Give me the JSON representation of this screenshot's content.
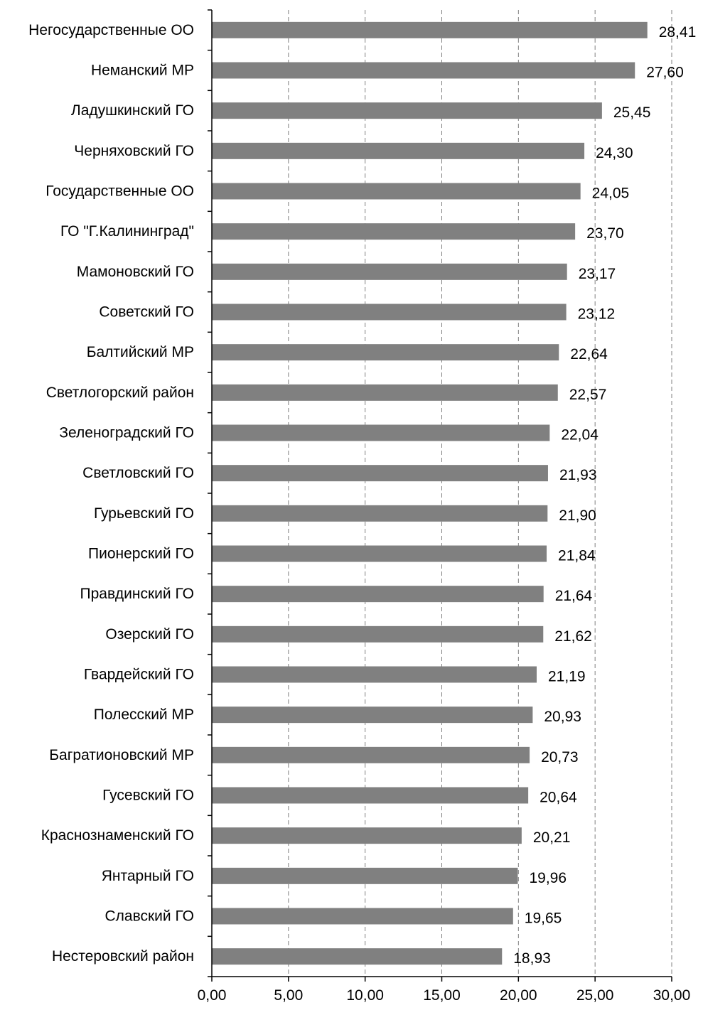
{
  "chart_data": {
    "type": "bar",
    "orientation": "horizontal",
    "title": "",
    "xlabel": "",
    "ylabel": "",
    "xlim": [
      0,
      30
    ],
    "x_ticks": [
      "0,00",
      "5,00",
      "10,00",
      "15,00",
      "20,00",
      "25,00",
      "30,00"
    ],
    "x_tick_values": [
      0,
      5,
      10,
      15,
      20,
      25,
      30
    ],
    "grid": "vertical-dashed",
    "legend": "none",
    "bar_color": "#808080",
    "categories": [
      "Негосударственные ОО",
      "Неманский МР",
      "Ладушкинский ГО",
      "Черняховский ГО",
      "Государственные ОО",
      "ГО \"Г.Калининград\"",
      "Мамоновский ГО",
      "Советский ГО",
      "Балтийский МР",
      "Светлогорский район",
      "Зеленоградский ГО",
      "Светловский ГО",
      "Гурьевский ГО",
      "Пионерский ГО",
      "Правдинский ГО",
      "Озерский ГО",
      "Гвардейский ГО",
      "Полесский МР",
      "Багратионовский МР",
      "Гусевский ГО",
      "Краснознаменский ГО",
      "Янтарный ГО",
      "Славский ГО",
      "Нестеровский район"
    ],
    "values": [
      28.41,
      27.6,
      25.45,
      24.3,
      24.05,
      23.7,
      23.17,
      23.12,
      22.64,
      22.57,
      22.04,
      21.93,
      21.9,
      21.84,
      21.64,
      21.62,
      21.19,
      20.93,
      20.73,
      20.64,
      20.21,
      19.96,
      19.65,
      18.93
    ],
    "value_labels": [
      "28,41",
      "27,60",
      "25,45",
      "24,30",
      "24,05",
      "23,70",
      "23,17",
      "23,12",
      "22,64",
      "22,57",
      "22,04",
      "21,93",
      "21,90",
      "21,84",
      "21,64",
      "21,62",
      "21,19",
      "20,93",
      "20,73",
      "20,64",
      "20,21",
      "19,96",
      "19,65",
      "18,93"
    ]
  }
}
